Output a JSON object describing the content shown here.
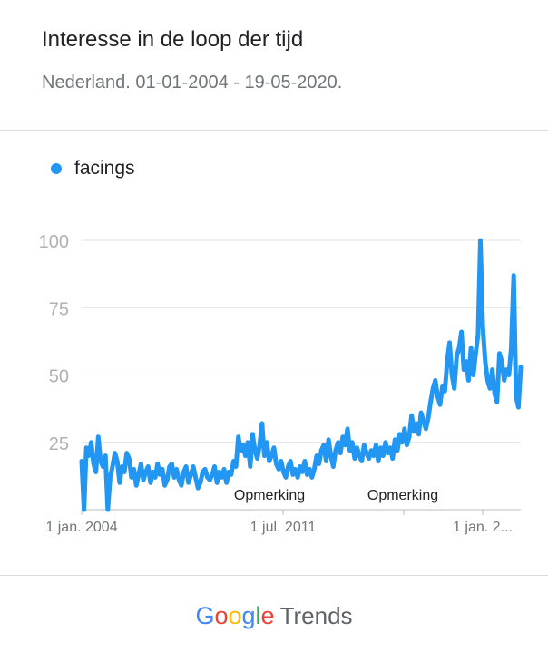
{
  "header": {
    "title": "Interesse in de loop der tijd",
    "subtitle": "Nederland. 01-01-2004 - 19-05-2020."
  },
  "legend": {
    "label": "facings",
    "color": "#2196f3"
  },
  "footer": {
    "brand": "Google",
    "product": "Trends"
  },
  "chart_data": {
    "type": "line",
    "title": "Interesse in de loop der tijd",
    "subtitle": "Nederland. 01-01-2004 - 19-05-2020.",
    "xlabel": "",
    "ylabel": "",
    "ylim": [
      0,
      100
    ],
    "yticks": [
      25,
      50,
      75,
      100
    ],
    "xticks": [
      "1 jan. 2004",
      "1 jul. 2011",
      "1 jan. 2..."
    ],
    "annotations": [
      "Opmerking",
      "Opmerking"
    ],
    "grid": true,
    "legend_position": "top-left",
    "series": [
      {
        "name": "facings",
        "color": "#2196f3",
        "x_range": [
          "2004-01",
          "2020-05"
        ],
        "values": [
          18,
          0,
          23,
          20,
          25,
          17,
          14,
          27,
          18,
          16,
          20,
          0,
          12,
          16,
          21,
          18,
          10,
          16,
          14,
          21,
          19,
          12,
          15,
          9,
          13,
          17,
          11,
          14,
          16,
          10,
          14,
          12,
          17,
          13,
          15,
          9,
          11,
          16,
          17,
          12,
          15,
          11,
          9,
          14,
          16,
          10,
          13,
          16,
          12,
          8,
          10,
          14,
          15,
          12,
          11,
          13,
          16,
          10,
          14,
          12,
          15,
          10,
          14,
          13,
          18,
          16,
          27,
          22,
          24,
          20,
          25,
          16,
          28,
          22,
          19,
          24,
          32,
          20,
          25,
          18,
          20,
          23,
          17,
          15,
          18,
          14,
          12,
          16,
          18,
          13,
          15,
          12,
          16,
          14,
          18,
          13,
          15,
          12,
          15,
          20,
          17,
          22,
          24,
          18,
          26,
          20,
          16,
          22,
          25,
          21,
          27,
          24,
          30,
          22,
          25,
          19,
          23,
          20,
          18,
          24,
          21,
          19,
          22,
          20,
          24,
          18,
          23,
          20,
          25,
          21,
          23,
          19,
          26,
          22,
          28,
          25,
          30,
          24,
          27,
          35,
          29,
          32,
          28,
          36,
          33,
          30,
          34,
          40,
          45,
          48,
          42,
          39,
          46,
          44,
          55,
          62,
          50,
          45,
          57,
          60,
          66,
          52,
          55,
          48,
          60,
          50,
          58,
          65,
          100,
          68,
          55,
          48,
          45,
          52,
          43,
          40,
          58,
          55,
          48,
          52,
          50,
          60,
          87,
          42,
          38,
          53
        ]
      }
    ]
  }
}
